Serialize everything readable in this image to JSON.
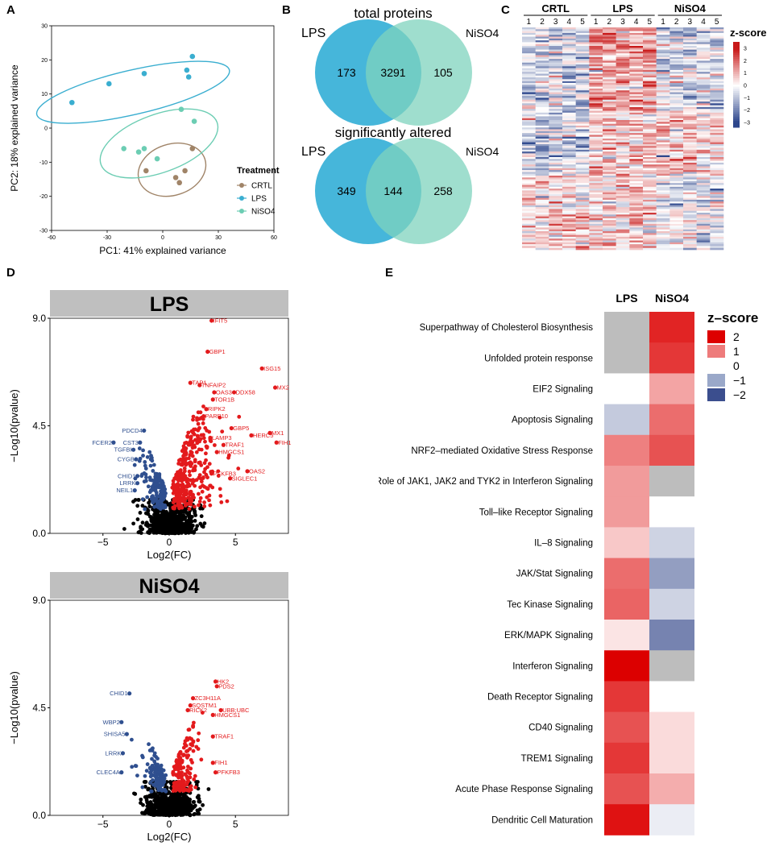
{
  "panel_labels": {
    "a": "A",
    "b": "B",
    "c": "C",
    "d": "D",
    "e": "E"
  },
  "colors": {
    "crtl": "#a08468",
    "lps": "#3aaed0",
    "niso4": "#6ccdb3",
    "venn_lps": "#46b6da",
    "venn_niso4": "#7fd3bd",
    "venn_overlap": "#5ec0c0",
    "up": "#e31a1c",
    "down": "#2f4f8f",
    "ns": "#000000",
    "heat_red": "#dd0000",
    "heat_blue": "#3b4e8e",
    "na": "#bdbdbd",
    "strip": "#bfbfbf"
  },
  "chart_data": [
    {
      "id": "A",
      "type": "scatter",
      "xlabel": "PC1: 41% explained variance",
      "ylabel": "PC2: 18% explained variance",
      "xlim": [
        -60,
        60
      ],
      "ylim": [
        -30,
        30
      ],
      "xticks": [
        -60,
        -30,
        0,
        30,
        60
      ],
      "yticks": [
        -30,
        -20,
        -10,
        0,
        10,
        20,
        30
      ],
      "legend_title": "Treatment",
      "series": [
        {
          "name": "CRTL",
          "points": [
            [
              -9,
              -12.5
            ],
            [
              7,
              -14.5
            ],
            [
              9,
              -16
            ],
            [
              12,
              -12.5
            ],
            [
              16,
              -6
            ]
          ]
        },
        {
          "name": "LPS",
          "points": [
            [
              -49,
              7.5
            ],
            [
              -29,
              13
            ],
            [
              -10,
              16
            ],
            [
              13,
              17
            ],
            [
              14,
              15
            ],
            [
              16,
              21
            ]
          ]
        },
        {
          "name": "NiSO4",
          "points": [
            [
              -21,
              -6
            ],
            [
              -13,
              -7
            ],
            [
              -10,
              -6
            ],
            [
              -3,
              -9
            ],
            [
              10,
              5.5
            ],
            [
              17,
              2
            ]
          ]
        }
      ]
    },
    {
      "id": "B",
      "type": "venn",
      "diagrams": [
        {
          "title": "total proteins",
          "left_label": "LPS",
          "right_label": "NiSO4",
          "left_only": "173",
          "overlap": "3291",
          "right_only": "105"
        },
        {
          "title": "significantly altered",
          "left_label": "LPS",
          "right_label": "NiSO4",
          "left_only": "349",
          "overlap": "144",
          "right_only": "258"
        }
      ]
    },
    {
      "id": "C",
      "type": "heatmap",
      "groups": [
        {
          "name": "CRTL",
          "samples": [
            "1",
            "2",
            "3",
            "4",
            "5"
          ]
        },
        {
          "name": "LPS",
          "samples": [
            "1",
            "2",
            "3",
            "4",
            "5"
          ]
        },
        {
          "name": "NiSO4",
          "samples": [
            "1",
            "2",
            "3",
            "4",
            "5"
          ]
        }
      ],
      "colorbar_title": "z-score",
      "colorbar_ticks": [
        "3",
        "2",
        "1",
        "0",
        "−1",
        "−2",
        "−3"
      ],
      "n_rows": 120
    },
    {
      "id": "D1",
      "type": "scatter",
      "title": "LPS",
      "xlabel": "Log2(FC)",
      "ylabel": "−Log10(pvalue)",
      "xlim": [
        -9,
        9
      ],
      "ylim": [
        0,
        9
      ],
      "xticks": [
        "−5",
        "0",
        "5"
      ],
      "yticks": [
        "0.0",
        "4.5",
        "9.0"
      ],
      "up_labels": [
        {
          "text": "IFIT5",
          "x": 3.2,
          "y": 8.9
        },
        {
          "text": "GBP1",
          "x": 2.9,
          "y": 7.6
        },
        {
          "text": "ISG15",
          "x": 7.0,
          "y": 6.9
        },
        {
          "text": "MX2",
          "x": 8.0,
          "y": 6.1
        },
        {
          "text": "TAP1",
          "x": 1.6,
          "y": 6.3
        },
        {
          "text": "TNFAIP2",
          "x": 2.3,
          "y": 6.2
        },
        {
          "text": "DDX58",
          "x": 4.9,
          "y": 5.9
        },
        {
          "text": "OAS3",
          "x": 3.4,
          "y": 5.9
        },
        {
          "text": "TOR1B",
          "x": 3.3,
          "y": 5.6
        },
        {
          "text": "RIPK2",
          "x": 2.8,
          "y": 5.2
        },
        {
          "text": "PARP10",
          "x": 2.6,
          "y": 4.9
        },
        {
          "text": "GBP5",
          "x": 4.7,
          "y": 4.4
        },
        {
          "text": "MX1",
          "x": 7.6,
          "y": 4.2
        },
        {
          "text": "HERC5",
          "x": 6.2,
          "y": 4.1
        },
        {
          "text": "LAMP3",
          "x": 3.1,
          "y": 4.0
        },
        {
          "text": "TRAF1",
          "x": 4.1,
          "y": 3.7
        },
        {
          "text": "FIH1",
          "x": 8.1,
          "y": 3.8
        },
        {
          "text": "HMGCS1",
          "x": 3.6,
          "y": 3.4
        },
        {
          "text": "OAS2",
          "x": 5.9,
          "y": 2.6
        },
        {
          "text": "PFKFB3",
          "x": 3.2,
          "y": 2.5
        },
        {
          "text": "SIGLEC1",
          "x": 4.6,
          "y": 2.3
        }
      ],
      "down_labels": [
        {
          "text": "PDCD4",
          "x": -1.9,
          "y": 4.3
        },
        {
          "text": "FCER2",
          "x": -4.2,
          "y": 3.8
        },
        {
          "text": "CST3",
          "x": -2.2,
          "y": 3.8
        },
        {
          "text": "TGFBI",
          "x": -2.7,
          "y": 3.5
        },
        {
          "text": "CYGB",
          "x": -2.5,
          "y": 3.1
        },
        {
          "text": "CHID1",
          "x": -2.4,
          "y": 2.4
        },
        {
          "text": "LRRK",
          "x": -2.4,
          "y": 2.1
        },
        {
          "text": "NEIL1",
          "x": -2.6,
          "y": 1.8
        }
      ]
    },
    {
      "id": "D2",
      "type": "scatter",
      "title": "NiSO4",
      "xlabel": "Log2(FC)",
      "ylabel": "−Log10(pvalue)",
      "xlim": [
        -9,
        9
      ],
      "ylim": [
        0,
        9
      ],
      "xticks": [
        "−5",
        "0",
        "5"
      ],
      "yticks": [
        "0.0",
        "4.5",
        "9.0"
      ],
      "up_labels": [
        {
          "text": "HK2",
          "x": 3.5,
          "y": 5.6
        },
        {
          "text": "PDS2",
          "x": 3.6,
          "y": 5.4
        },
        {
          "text": "ZC3H11A",
          "x": 1.8,
          "y": 4.9
        },
        {
          "text": "SQSTM1",
          "x": 1.6,
          "y": 4.6
        },
        {
          "text": "RICK2",
          "x": 1.4,
          "y": 4.4
        },
        {
          "text": "UBB;UBC",
          "x": 3.9,
          "y": 4.4
        },
        {
          "text": "HMGCS1",
          "x": 3.3,
          "y": 4.2
        },
        {
          "text": "TRAF1",
          "x": 3.3,
          "y": 3.3
        },
        {
          "text": "FIH1",
          "x": 3.3,
          "y": 2.2
        },
        {
          "text": "PFKFB3",
          "x": 3.5,
          "y": 1.8
        }
      ],
      "down_labels": [
        {
          "text": "CHID1",
          "x": -3.0,
          "y": 5.1
        },
        {
          "text": "WBP2",
          "x": -3.6,
          "y": 3.9
        },
        {
          "text": "SHISA5",
          "x": -3.2,
          "y": 3.4
        },
        {
          "text": "LRRK",
          "x": -3.5,
          "y": 2.6
        },
        {
          "text": "CLEC4A",
          "x": -3.6,
          "y": 1.8
        }
      ]
    },
    {
      "id": "E",
      "type": "heatmap",
      "columns": [
        "LPS",
        "NiSO4"
      ],
      "legend_title": "z–score",
      "legend_items": [
        {
          "label": "2",
          "color": "#dd0000"
        },
        {
          "label": "1",
          "color": "#ee7b7b"
        },
        {
          "label": "0",
          "color": "#ffffff"
        },
        {
          "label": "−1",
          "color": "#9aa8c9"
        },
        {
          "label": "−2",
          "color": "#3b4e8e"
        }
      ],
      "rows": [
        {
          "pathway": "Superpathway of Cholesterol Biosynthesis",
          "values": [
            null,
            2.4
          ]
        },
        {
          "pathway": "Unfolded protein response",
          "values": [
            null,
            2.2
          ]
        },
        {
          "pathway": "EIF2 Signaling",
          "values": [
            0,
            1.0
          ]
        },
        {
          "pathway": "Apoptosis Signaling",
          "values": [
            -0.6,
            1.6
          ]
        },
        {
          "pathway": "NRF2–mediated Oxidative Stress Response",
          "values": [
            1.4,
            1.9
          ]
        },
        {
          "pathway": "Role of JAK1, JAK2 and TYK2 in Interferon Signaling",
          "values": [
            1.1,
            null
          ]
        },
        {
          "pathway": "Toll–like Receptor Signaling",
          "values": [
            1.1,
            0
          ]
        },
        {
          "pathway": "IL–8 Signaling",
          "values": [
            0.6,
            -0.5
          ]
        },
        {
          "pathway": "JAK/Stat Signaling",
          "values": [
            1.6,
            -1.1
          ]
        },
        {
          "pathway": "Tec Kinase Signaling",
          "values": [
            1.7,
            -0.5
          ]
        },
        {
          "pathway": "ERK/MAPK Signaling",
          "values": [
            0.3,
            -1.4
          ]
        },
        {
          "pathway": "Interferon Signaling",
          "values": [
            2.8,
            null
          ]
        },
        {
          "pathway": "Death Receptor Signaling",
          "values": [
            2.2,
            0
          ]
        },
        {
          "pathway": "CD40 Signaling",
          "values": [
            1.9,
            0.4
          ]
        },
        {
          "pathway": "TREM1 Signaling",
          "values": [
            2.2,
            0.4
          ]
        },
        {
          "pathway": "Acute Phase Response Signaling",
          "values": [
            1.9,
            0.9
          ]
        },
        {
          "pathway": "Dendritic Cell Maturation",
          "values": [
            2.6,
            -0.2
          ]
        }
      ]
    }
  ]
}
